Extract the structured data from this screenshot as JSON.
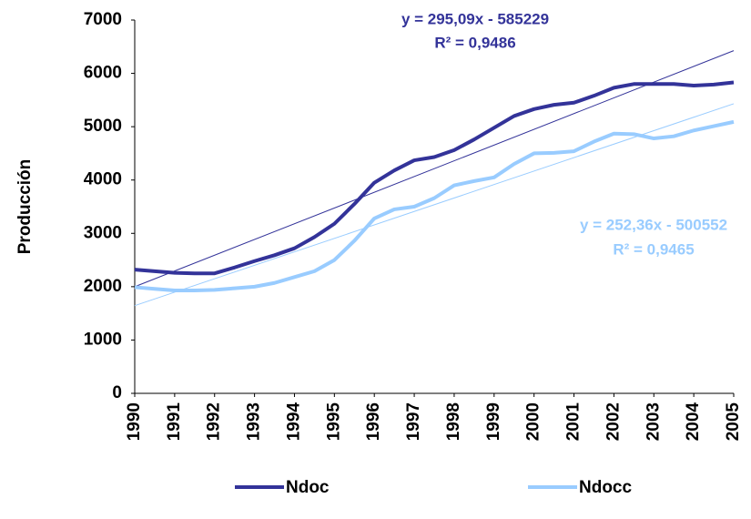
{
  "chart_data": {
    "type": "line",
    "y_label": "Producción",
    "x": [
      1990,
      1990.5,
      1991,
      1991.5,
      1992,
      1992.5,
      1993,
      1993.5,
      1994,
      1994.5,
      1995,
      1995.5,
      1996,
      1996.5,
      1997,
      1997.5,
      1998,
      1998.5,
      1999,
      1999.5,
      2000,
      2000.5,
      2001,
      2001.5,
      2002,
      2002.5,
      2003,
      2003.5,
      2004,
      2004.5,
      2005
    ],
    "series": [
      {
        "name": "Ndoc",
        "color": "#333399",
        "values": [
          2320,
          2290,
          2260,
          2250,
          2250,
          2360,
          2480,
          2590,
          2720,
          2930,
          3180,
          3550,
          3950,
          4180,
          4370,
          4430,
          4560,
          4760,
          4980,
          5200,
          5330,
          5410,
          5450,
          5580,
          5730,
          5800,
          5800,
          5800,
          5770,
          5790,
          5830
        ],
        "trendline": {
          "x": [
            1990,
            2005
          ],
          "values": [
            2000,
            6426
          ],
          "equation": "y = 295,09x - 585229",
          "r2": "R² = 0,9486"
        }
      },
      {
        "name": "Ndocc",
        "color": "#99ccff",
        "values": [
          1990,
          1960,
          1930,
          1930,
          1940,
          1970,
          2000,
          2070,
          2180,
          2290,
          2500,
          2860,
          3280,
          3450,
          3500,
          3660,
          3900,
          3980,
          4050,
          4300,
          4500,
          4510,
          4540,
          4720,
          4870,
          4860,
          4780,
          4820,
          4930,
          5010,
          5090
        ],
        "trendline": {
          "x": [
            1990,
            2005
          ],
          "values": [
            1644,
            5430
          ],
          "equation": "y = 252,36x - 500552",
          "r2": "R² = 0,9465"
        }
      }
    ],
    "xlim": [
      1990,
      2005
    ],
    "xticks": [
      1990,
      1991,
      1992,
      1993,
      1994,
      1995,
      1996,
      1997,
      1998,
      1999,
      2000,
      2001,
      2002,
      2003,
      2004,
      2005
    ],
    "ylim": [
      0,
      7000
    ],
    "yticks": [
      0,
      1000,
      2000,
      3000,
      4000,
      5000,
      6000,
      7000
    ],
    "grid": false,
    "legend": "bottom"
  }
}
